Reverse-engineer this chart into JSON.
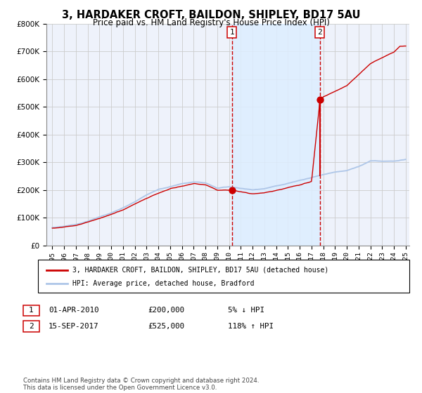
{
  "title": "3, HARDAKER CROFT, BAILDON, SHIPLEY, BD17 5AU",
  "subtitle": "Price paid vs. HM Land Registry's House Price Index (HPI)",
  "legend_line1": "3, HARDAKER CROFT, BAILDON, SHIPLEY, BD17 5AU (detached house)",
  "legend_line2": "HPI: Average price, detached house, Bradford",
  "sale1_date": "01-APR-2010",
  "sale1_price": 200000,
  "sale1_pct": "5% ↓ HPI",
  "sale2_date": "15-SEP-2017",
  "sale2_price": 525000,
  "sale2_pct": "118% ↑ HPI",
  "footer": "Contains HM Land Registry data © Crown copyright and database right 2024.\nThis data is licensed under the Open Government Licence v3.0.",
  "hpi_color": "#aec6e8",
  "property_color": "#cc0000",
  "vline_color": "#cc0000",
  "shade_color": "#ddeeff",
  "grid_color": "#cccccc",
  "plot_bg": "#eef2fb",
  "ylim": [
    0,
    800000
  ],
  "yticks": [
    0,
    100000,
    200000,
    300000,
    400000,
    500000,
    600000,
    700000,
    800000
  ],
  "year_start": 1995,
  "year_end": 2025,
  "sale1_x": 2010.25,
  "sale2_x": 2017.71,
  "hpi_waypoints_x": [
    1995,
    1996,
    1997,
    1998,
    1999,
    2000,
    2001,
    2002,
    2003,
    2004,
    2005,
    2006,
    2007,
    2008,
    2009,
    2010,
    2011,
    2012,
    2013,
    2014,
    2015,
    2016,
    2017,
    2018,
    2019,
    2020,
    2021,
    2022,
    2023,
    2024,
    2025
  ],
  "hpi_waypoints_y": [
    65000,
    70000,
    78000,
    90000,
    105000,
    120000,
    138000,
    160000,
    185000,
    205000,
    215000,
    225000,
    230000,
    225000,
    205000,
    210000,
    205000,
    200000,
    205000,
    215000,
    225000,
    235000,
    245000,
    255000,
    265000,
    270000,
    285000,
    305000,
    305000,
    305000,
    310000
  ],
  "prop_waypoints_x": [
    1995,
    1997,
    1999,
    2001,
    2003,
    2005,
    2007,
    2008,
    2009,
    2010.25,
    2011,
    2012,
    2013,
    2014,
    2015,
    2016,
    2017,
    2017.71,
    2018,
    2019,
    2020,
    2021,
    2022,
    2023,
    2024,
    2024.5
  ],
  "prop_waypoints_y": [
    63000,
    73000,
    98000,
    128000,
    170000,
    205000,
    225000,
    220000,
    200000,
    200000,
    195000,
    188000,
    192000,
    200000,
    210000,
    220000,
    235000,
    525000,
    540000,
    560000,
    580000,
    620000,
    660000,
    680000,
    700000,
    720000
  ]
}
